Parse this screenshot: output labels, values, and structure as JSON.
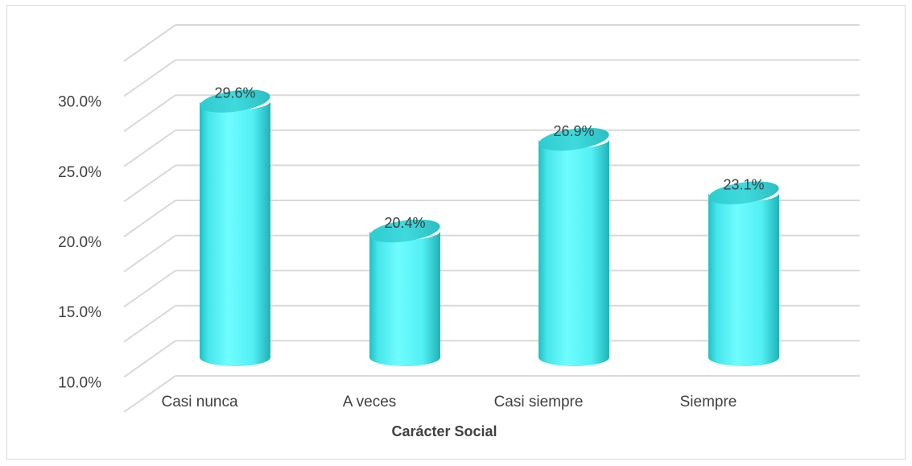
{
  "chart_data": {
    "type": "bar",
    "style": "3d-cylinder",
    "categories": [
      "Casi nunca",
      "A veces",
      "Casi siempre",
      "Siempre"
    ],
    "values": [
      29.6,
      20.4,
      26.9,
      23.1
    ],
    "data_labels": [
      "29.6%",
      "20.4%",
      "26.9%",
      "23.1%"
    ],
    "xlabel": "Carácter Social",
    "ylabel": "",
    "ylim": [
      7.5,
      32.5
    ],
    "yticks": [
      {
        "value": 30,
        "label": "30.0%"
      },
      {
        "value": 25,
        "label": "25.0%"
      },
      {
        "value": 20,
        "label": "20.0%"
      },
      {
        "value": 15,
        "label": "15.0%"
      },
      {
        "value": 10,
        "label": "10.0%"
      }
    ],
    "gridlines": [
      7.5,
      10,
      12.5,
      15,
      17.5,
      20,
      22.5,
      25,
      27.5,
      30,
      32.5
    ],
    "grid": true,
    "legend": "none",
    "bar_color": "#4DF2F5"
  }
}
